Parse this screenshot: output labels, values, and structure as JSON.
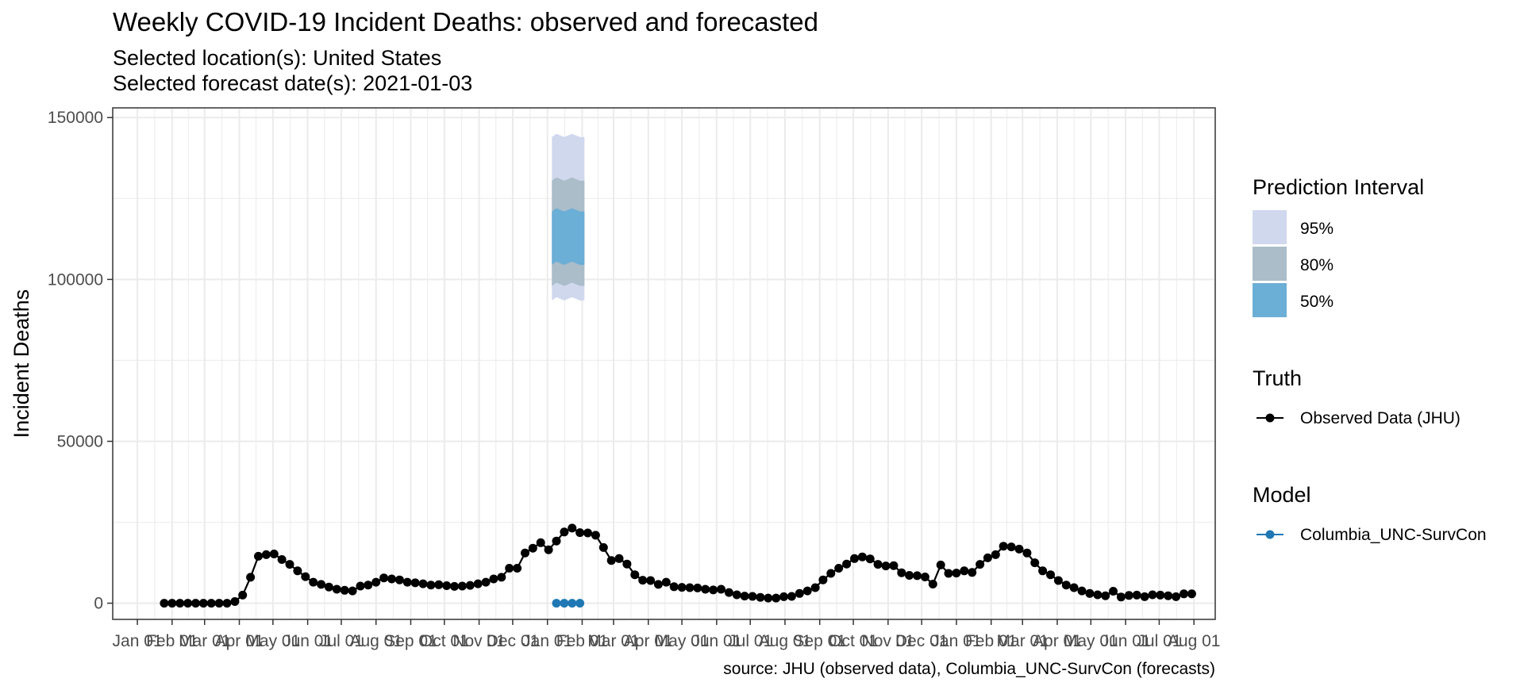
{
  "title": "Weekly COVID-19 Incident Deaths: observed and forecasted",
  "subtitle_location": "Selected location(s): United States",
  "subtitle_date": "Selected forecast date(s): 2021-01-03",
  "caption": "source: JHU (observed data), Columbia_UNC-SurvCon (forecasts)",
  "colors": {
    "observed": "#000000",
    "model": "#1f78b4",
    "pi95": "#d0d8ee",
    "pi80": "#aabdc9",
    "pi50": "#6baed6",
    "grid": "#ebebeb",
    "panel_border": "#333333"
  },
  "chart_data": {
    "type": "line",
    "xlabel": "",
    "ylabel": "Incident Deaths",
    "ylim": [
      -5000,
      153000
    ],
    "y_ticks": [
      0,
      50000,
      100000,
      150000
    ],
    "y_tick_labels": [
      "0",
      "50000",
      "100000",
      "150000"
    ],
    "x_tick_labels": [
      "Jan 01",
      "Feb 01",
      "Mar 01",
      "Apr 01",
      "May 01",
      "Jun 01",
      "Jul 01",
      "Aug 01",
      "Sep 01",
      "Oct 01",
      "Nov 01",
      "Dec 01",
      "Jan 01",
      "Feb 01",
      "Mar 01",
      "Apr 01",
      "May 01",
      "Jun 01",
      "Jul 01",
      "Aug 01",
      "Sep 01",
      "Oct 01",
      "Nov 01",
      "Dec 01",
      "Jan 01",
      "Feb 01",
      "Mar 01",
      "Apr 01",
      "May 01",
      "Jun 01",
      "Jul 01",
      "Aug 01"
    ],
    "x_tick_dates": [
      "2020-01-01",
      "2020-02-01",
      "2020-03-01",
      "2020-04-01",
      "2020-05-01",
      "2020-06-01",
      "2020-07-01",
      "2020-08-01",
      "2020-09-01",
      "2020-10-01",
      "2020-11-01",
      "2020-12-01",
      "2021-01-01",
      "2021-02-01",
      "2021-03-01",
      "2021-04-01",
      "2021-05-01",
      "2021-06-01",
      "2021-07-01",
      "2021-08-01",
      "2021-09-01",
      "2021-10-01",
      "2021-11-01",
      "2021-12-01",
      "2022-01-01",
      "2022-02-01",
      "2022-03-01",
      "2022-04-01",
      "2022-05-01",
      "2022-06-01",
      "2022-07-01",
      "2022-08-01"
    ],
    "xlim": [
      "2019-12-10",
      "2022-08-20"
    ],
    "observed": {
      "name": "Observed Data (JHU)",
      "start_date": "2020-01-25",
      "interval_days": 7,
      "values": [
        0,
        0,
        0,
        0,
        0,
        0,
        0,
        0,
        0,
        500,
        2500,
        8000,
        14500,
        15000,
        15200,
        13500,
        12000,
        10000,
        8200,
        6500,
        5800,
        5000,
        4300,
        4000,
        3800,
        5300,
        5600,
        6500,
        7800,
        7500,
        7200,
        6500,
        6300,
        6000,
        5600,
        5700,
        5400,
        5200,
        5300,
        5500,
        6000,
        6500,
        7500,
        8000,
        10800,
        10800,
        15500,
        17000,
        18700,
        16500,
        19200,
        22000,
        23200,
        21800,
        21700,
        21000,
        17200,
        13200,
        13800,
        12100,
        8800,
        7100,
        7000,
        5800,
        6500,
        5100,
        4900,
        4800,
        4700,
        4300,
        4100,
        4300,
        3300,
        2600,
        2200,
        2100,
        1800,
        1600,
        1600,
        2000,
        2100,
        3000,
        3800,
        4800,
        7200,
        9200,
        10800,
        12100,
        13800,
        14300,
        13700,
        12000,
        11500,
        11600,
        9400,
        8600,
        8500,
        8100,
        5900,
        11800,
        9200,
        9300,
        10000,
        9500,
        12000,
        14000,
        15000,
        17600,
        17400,
        16700,
        15500,
        12500,
        10000,
        8800,
        7000,
        5600,
        4800,
        3800,
        3000,
        2600,
        2300,
        3700,
        1900,
        2400,
        2500,
        2000,
        2600,
        2500,
        2300,
        2000,
        2900,
        2900
      ]
    },
    "model": {
      "name": "Columbia_UNC-SurvCon",
      "dates": [
        "2021-01-09",
        "2021-01-16",
        "2021-01-23",
        "2021-01-30"
      ],
      "values": [
        0,
        0,
        0,
        0
      ],
      "interval_dates": [
        "2021-01-05",
        "2021-01-09",
        "2021-01-16",
        "2021-01-23",
        "2021-01-30",
        "2021-02-03"
      ],
      "pi95": {
        "lower": [
          93500,
          94500,
          93500,
          94500,
          93500,
          93500
        ],
        "upper": [
          144000,
          145000,
          144000,
          145000,
          144000,
          144000
        ]
      },
      "pi80": {
        "lower": [
          98000,
          99000,
          98000,
          99000,
          98000,
          98000
        ],
        "upper": [
          130500,
          131500,
          130500,
          131500,
          130500,
          130500
        ]
      },
      "pi50": {
        "lower": [
          104500,
          105500,
          104500,
          105500,
          104500,
          104500
        ],
        "upper": [
          121000,
          122000,
          121000,
          122000,
          121000,
          121000
        ]
      }
    },
    "grid": true,
    "legend_position": "right",
    "legend": {
      "interval_title": "Prediction Interval",
      "interval_labels": [
        "95%",
        "80%",
        "50%"
      ],
      "truth_title": "Truth",
      "model_title": "Model"
    }
  }
}
